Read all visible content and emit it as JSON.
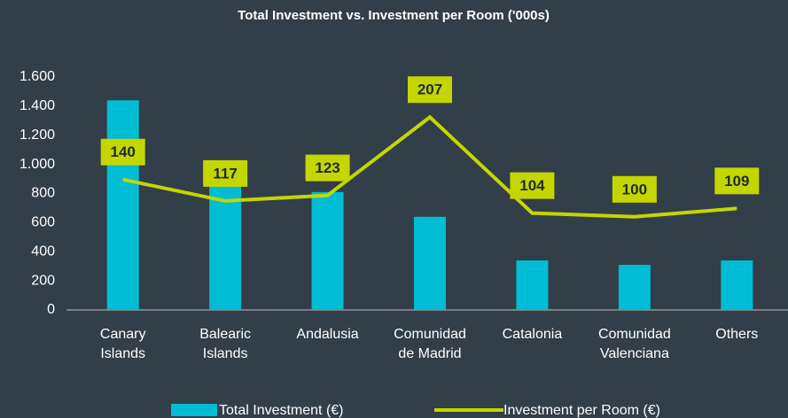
{
  "chart_data": {
    "type": "bar",
    "title": "Total Investment vs. Investment per Room ('000s)",
    "categories": [
      [
        "Canary",
        "Islands"
      ],
      [
        "Balearic",
        "Islands"
      ],
      [
        "Andalusia"
      ],
      [
        "Comunidad",
        "de Madrid"
      ],
      [
        "Catalonia"
      ],
      [
        "Comunidad",
        "Valenciana"
      ],
      [
        "Others"
      ]
    ],
    "series": [
      {
        "name": "Total Investment (€)",
        "type": "bar",
        "color": "#00bcd4",
        "values": [
          1440,
          850,
          810,
          640,
          340,
          310,
          340
        ]
      },
      {
        "name": "Investment per Room (€)",
        "type": "line",
        "axis": "y2",
        "color": "#c4d600",
        "values": [
          140,
          117,
          123,
          207,
          104,
          100,
          109
        ]
      }
    ],
    "ylim": [
      0,
      1600
    ],
    "yticks": [
      0,
      200,
      400,
      600,
      800,
      {
        "value": 1000,
        "label": "1.000"
      },
      {
        "value": 1200,
        "label": "1.200"
      },
      {
        "value": 1400,
        "label": "1.400"
      },
      {
        "value": 1600,
        "label": "1.600"
      }
    ],
    "y2lim": [
      0,
      250
    ],
    "legend": "bottom"
  }
}
